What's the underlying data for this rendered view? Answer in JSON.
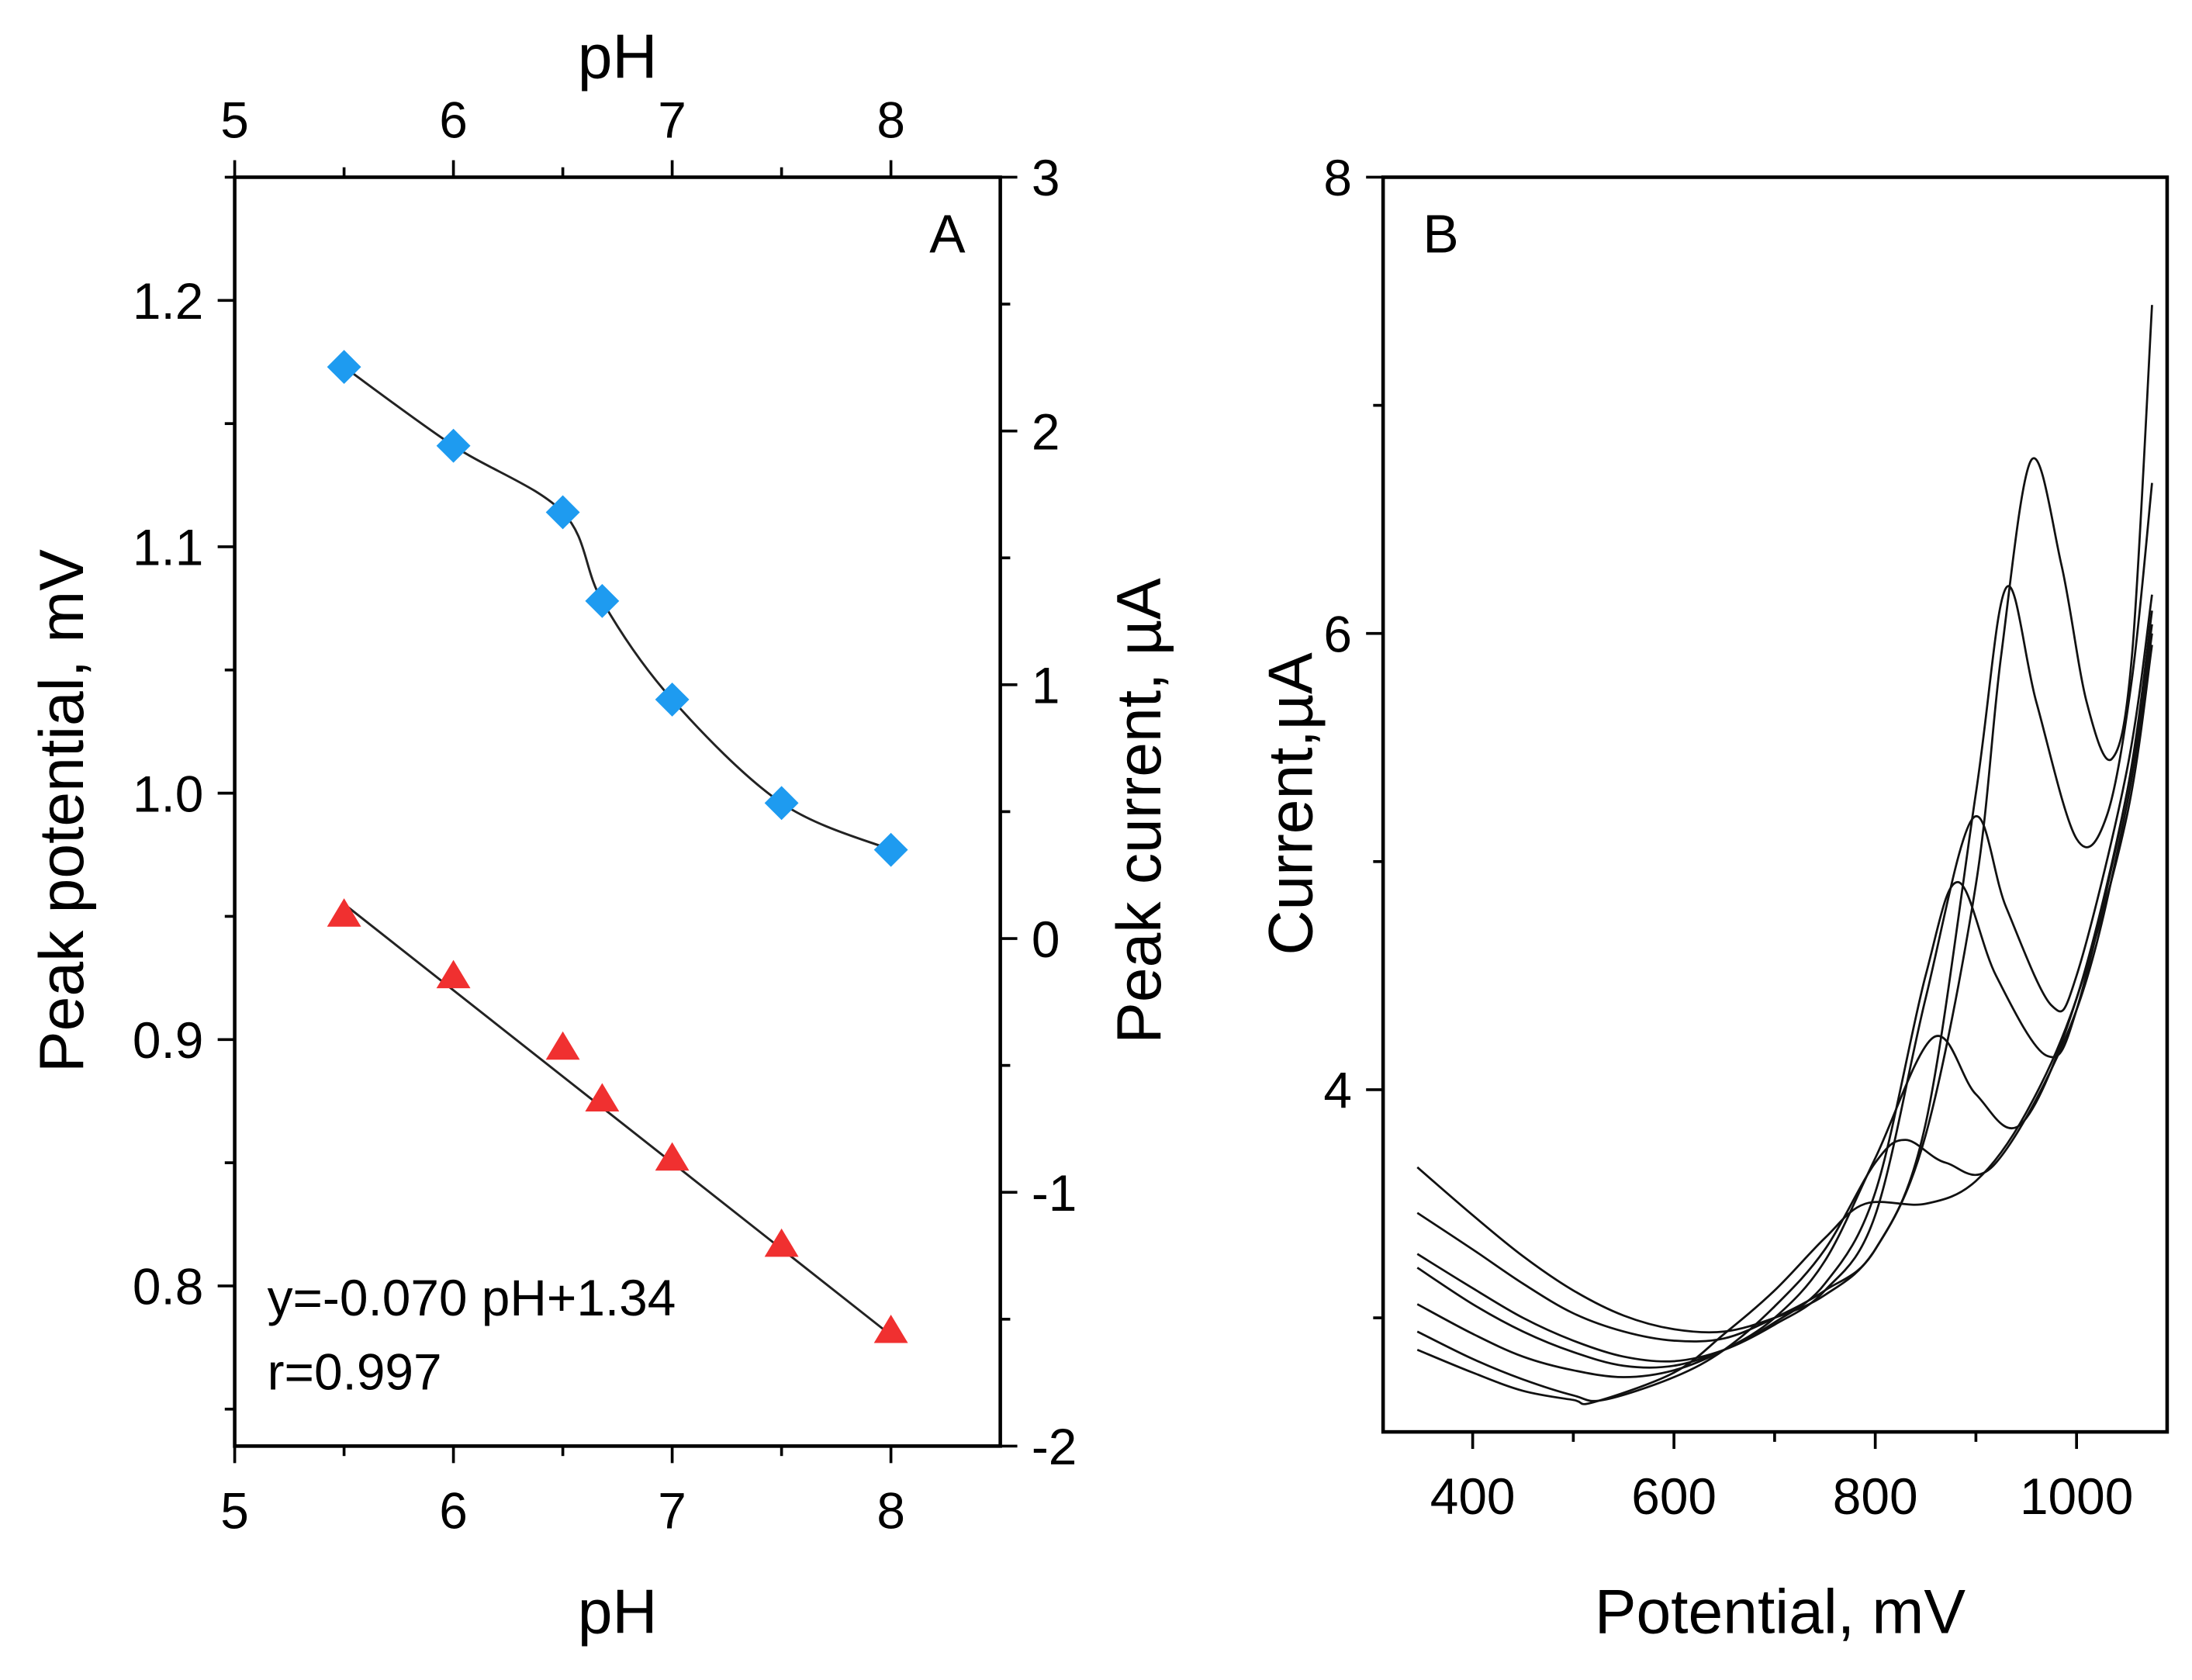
{
  "chart_data": [
    {
      "panel": "A",
      "type": "scatter",
      "panel_label": "A",
      "xlabel": "pH",
      "x2label": "pH",
      "ylabel": "Peak potential, mV",
      "y2label": "Peak current, µA",
      "xlim": [
        5,
        8.5
      ],
      "ylim": [
        0.735,
        1.25
      ],
      "y2lim": [
        -2,
        3
      ],
      "xticks": [
        "5",
        "6",
        "7",
        "8"
      ],
      "x2ticks": [
        "5",
        "6",
        "7",
        "8"
      ],
      "yticks": [
        "0.8",
        "0.9",
        "1.0",
        "1.1",
        "1.2"
      ],
      "y2ticks": [
        "-2",
        "-1",
        "0",
        "1",
        "2",
        "3"
      ],
      "series": [
        {
          "name": "blue diamonds",
          "marker": "diamond",
          "color": "#1e9bf0",
          "fit": "smooth",
          "x": [
            5.5,
            6.0,
            6.5,
            6.68,
            7.0,
            7.5,
            8.0
          ],
          "y": [
            1.173,
            1.141,
            1.114,
            1.078,
            1.038,
            0.996,
            0.977
          ]
        },
        {
          "name": "red triangles",
          "marker": "triangle",
          "color": "#f03030",
          "fit": "linear",
          "x": [
            5.5,
            6.0,
            6.5,
            6.68,
            7.0,
            7.5,
            8.0
          ],
          "y": [
            0.951,
            0.926,
            0.897,
            0.876,
            0.852,
            0.817,
            0.782
          ]
        }
      ],
      "annotations": [
        "y=-0.070 pH+1.34",
        "r=0.997"
      ],
      "fit_line": {
        "slope": -0.07,
        "intercept": 1.34,
        "x": [
          5.5,
          8.0
        ]
      }
    },
    {
      "panel": "B",
      "type": "line",
      "panel_label": "B",
      "xlabel": "Potential, mV",
      "ylabel": "Current,µA",
      "xlim": [
        311,
        1090
      ],
      "ylim": [
        2.5,
        8
      ],
      "xticks": [
        "400",
        "600",
        "800",
        "1000"
      ],
      "yticks": [
        "4",
        "6",
        "8"
      ],
      "series": [
        {
          "name": "curve 1",
          "x": [
            345,
            400,
            450,
            500,
            550,
            600,
            650,
            700,
            750,
            800,
            850,
            900,
            925,
            955,
            985,
            1010,
            1035,
            1055,
            1075
          ],
          "y": [
            3.66,
            3.45,
            3.27,
            3.12,
            3.01,
            2.95,
            2.94,
            3.0,
            3.1,
            3.3,
            3.8,
            4.9,
            5.9,
            6.76,
            6.3,
            5.7,
            5.45,
            5.9,
            7.44
          ]
        },
        {
          "name": "curve 2",
          "x": [
            345,
            400,
            450,
            500,
            550,
            600,
            650,
            700,
            750,
            800,
            850,
            900,
            930,
            960,
            1000,
            1030,
            1055,
            1075
          ],
          "y": [
            3.46,
            3.3,
            3.15,
            3.02,
            2.94,
            2.9,
            2.91,
            3.0,
            3.12,
            3.3,
            3.85,
            5.3,
            6.2,
            5.7,
            5.1,
            5.2,
            5.8,
            6.66
          ]
        },
        {
          "name": "curve 3",
          "x": [
            345,
            400,
            450,
            500,
            550,
            600,
            650,
            700,
            750,
            800,
            850,
            897,
            930,
            975,
            1000,
            1050,
            1075
          ],
          "y": [
            3.28,
            3.13,
            3.0,
            2.9,
            2.83,
            2.81,
            2.86,
            2.97,
            3.12,
            3.45,
            4.4,
            5.19,
            4.8,
            4.37,
            4.5,
            5.4,
            6.17
          ]
        },
        {
          "name": "curve 4",
          "x": [
            345,
            400,
            450,
            500,
            550,
            600,
            650,
            700,
            750,
            800,
            850,
            882,
            920,
            970,
            1000,
            1050,
            1075
          ],
          "y": [
            3.22,
            3.06,
            2.94,
            2.85,
            2.79,
            2.79,
            2.86,
            2.98,
            3.15,
            3.55,
            4.5,
            4.91,
            4.5,
            4.15,
            4.35,
            5.3,
            6.1
          ]
        },
        {
          "name": "curve 5",
          "x": [
            345,
            400,
            450,
            500,
            550,
            600,
            650,
            700,
            750,
            800,
            858,
            900,
            945,
            1000,
            1050,
            1075
          ],
          "y": [
            3.06,
            2.93,
            2.83,
            2.77,
            2.74,
            2.77,
            2.86,
            3.0,
            3.25,
            3.7,
            4.23,
            3.98,
            3.85,
            4.4,
            5.3,
            6.04
          ]
        },
        {
          "name": "curve 6",
          "x": [
            345,
            400,
            450,
            500,
            530,
            600,
            650,
            700,
            750,
            800,
            830,
            870,
            920,
            1000,
            1050,
            1075
          ],
          "y": [
            2.94,
            2.82,
            2.73,
            2.66,
            2.64,
            2.74,
            2.86,
            3.05,
            3.3,
            3.68,
            3.78,
            3.68,
            3.68,
            4.35,
            5.25,
            6.0
          ]
        },
        {
          "name": "curve 7",
          "x": [
            345,
            400,
            450,
            500,
            520,
            600,
            650,
            700,
            750,
            790,
            850,
            900,
            950,
            1000,
            1050,
            1075
          ],
          "y": [
            2.86,
            2.76,
            2.68,
            2.64,
            2.63,
            2.76,
            2.93,
            3.12,
            3.35,
            3.5,
            3.5,
            3.6,
            3.9,
            4.4,
            5.2,
            5.95
          ]
        }
      ]
    }
  ]
}
